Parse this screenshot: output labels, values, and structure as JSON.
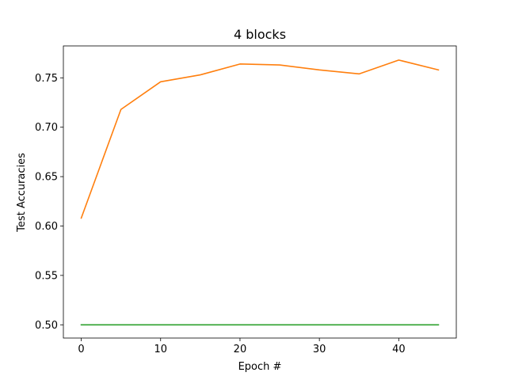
{
  "chart_data": {
    "type": "line",
    "title": "4 blocks",
    "xlabel": "Epoch #",
    "ylabel": "Test Accuracies",
    "xlim": [
      -2.25,
      47.25
    ],
    "ylim": [
      0.4866,
      0.7823
    ],
    "xticks": [
      0,
      10,
      20,
      30,
      40
    ],
    "yticks": [
      0.5,
      0.55,
      0.6,
      0.65,
      0.7,
      0.75
    ],
    "xtick_labels": [
      "0",
      "10",
      "20",
      "30",
      "40"
    ],
    "ytick_labels": [
      "0.50",
      "0.55",
      "0.60",
      "0.65",
      "0.70",
      "0.75"
    ],
    "grid": false,
    "x": [
      0,
      5,
      10,
      15,
      20,
      25,
      30,
      35,
      40,
      45
    ],
    "series": [
      {
        "color": "#ff7f0e",
        "values": [
          0.608,
          0.718,
          0.746,
          0.753,
          0.764,
          0.763,
          0.758,
          0.754,
          0.768,
          0.758
        ]
      },
      {
        "color": "#2ca02c",
        "values": [
          0.5,
          0.5,
          0.5,
          0.5,
          0.5,
          0.5,
          0.5,
          0.5,
          0.5,
          0.5
        ]
      }
    ]
  }
}
